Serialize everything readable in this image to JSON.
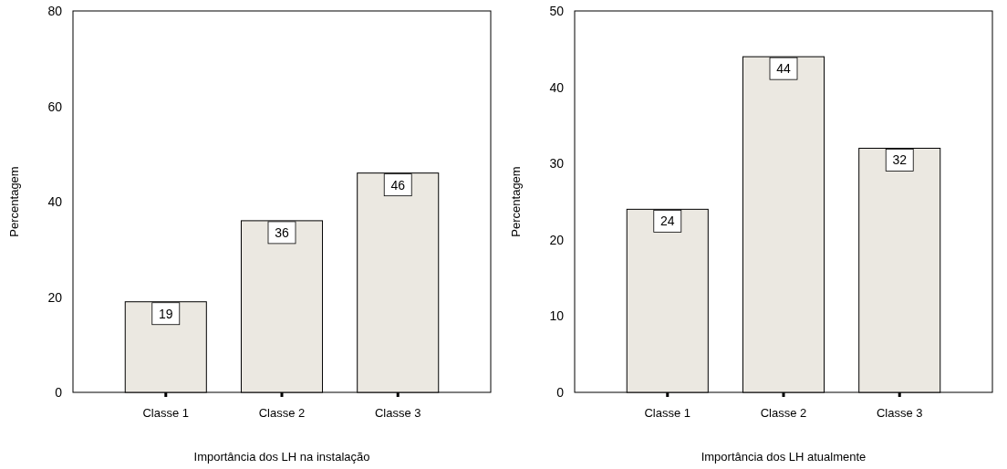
{
  "chart_data": [
    {
      "type": "bar",
      "categories": [
        "Classe 1",
        "Classe 2",
        "Classe 3"
      ],
      "values": [
        19,
        36,
        46
      ],
      "color": "#ebe8e1",
      "ylim": [
        0,
        80
      ],
      "yticks": [
        0,
        20,
        40,
        60,
        80
      ],
      "xlabel": "Importância dos LH na instalação",
      "ylabel": "Percentagem",
      "data_labels": true,
      "grid": false
    },
    {
      "type": "bar",
      "categories": [
        "Classe 1",
        "Classe 2",
        "Classe 3"
      ],
      "values": [
        24,
        44,
        32
      ],
      "color": "#ebe8e1",
      "ylim": [
        0,
        50
      ],
      "yticks": [
        0,
        10,
        20,
        30,
        40,
        50
      ],
      "xlabel": "Importância dos LH atualmente",
      "ylabel": "Percentagem",
      "data_labels": true,
      "grid": false
    }
  ]
}
